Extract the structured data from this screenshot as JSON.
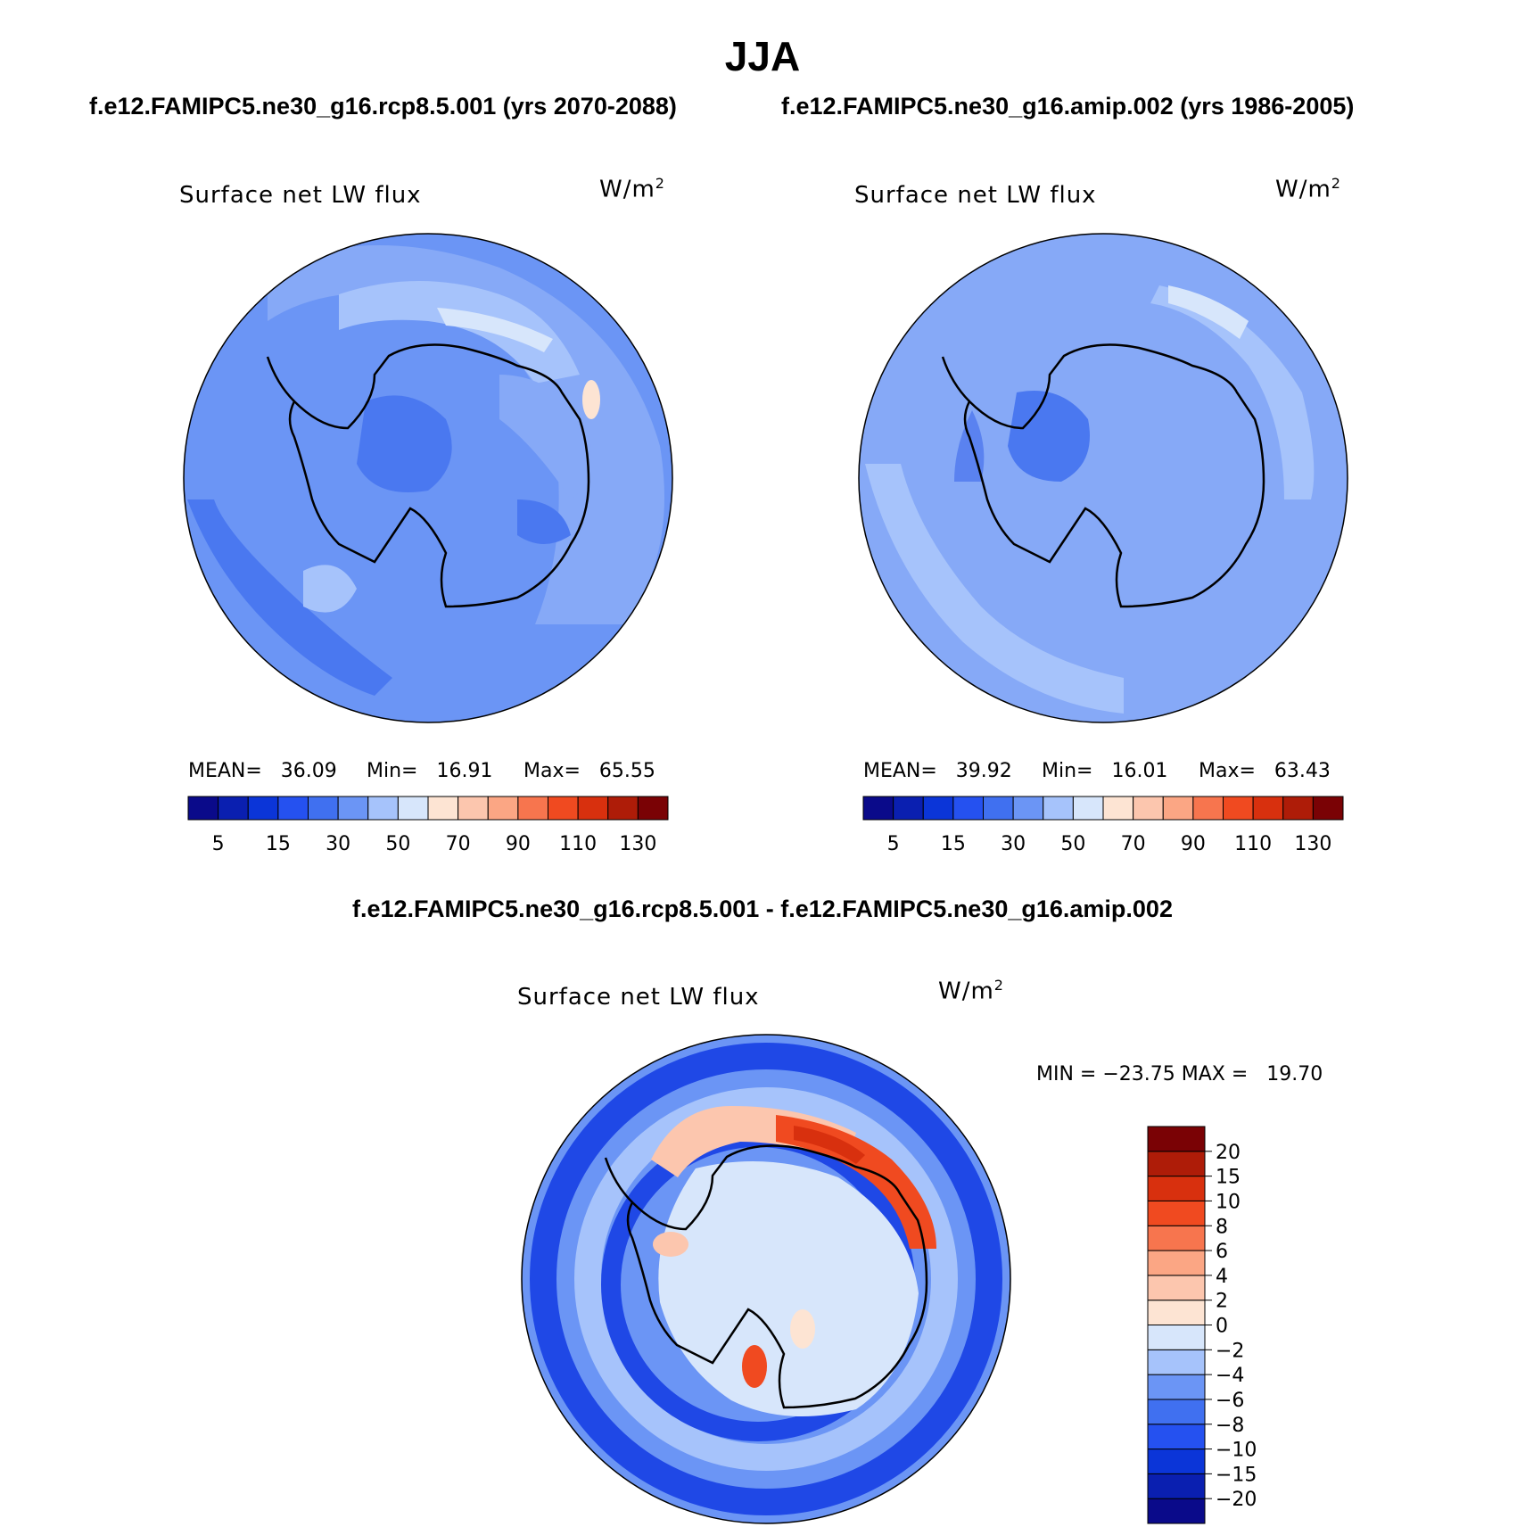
{
  "season": "JJA",
  "case_a_title": "f.e12.FAMIPC5.ne30_g16.rcp8.5.001 (yrs 2070-2088)",
  "case_b_title": "f.e12.FAMIPC5.ne30_g16.amip.002 (yrs 1986-2005)",
  "diff_title": "f.e12.FAMIPC5.ne30_g16.rcp8.5.001 - f.e12.FAMIPC5.ne30_g16.amip.002",
  "variable": "Surface net LW flux",
  "units_base": "W/m",
  "units_exp": "2",
  "panel_a": {
    "mean": "MEAN=   36.09",
    "min": "Min=   16.91",
    "max": "Max=   65.55"
  },
  "panel_b": {
    "mean": "MEAN=   39.92",
    "min": "Min=   16.01",
    "max": "Max=   63.43"
  },
  "panel_diff": {
    "minmax": "MIN = −23.75 MAX =   19.70"
  },
  "abs_colorbar": {
    "colors": [
      "#0a0a8a",
      "#0a1fb0",
      "#0b35d8",
      "#2551f0",
      "#4070f0",
      "#6b95f5",
      "#a6c3fb",
      "#d7e6fb",
      "#fde4d3",
      "#fcc6ae",
      "#fba684",
      "#f7754e",
      "#f04a20",
      "#d8300e",
      "#ae1c08",
      "#7a0205"
    ],
    "tick_labels": [
      "5",
      "15",
      "30",
      "50",
      "70",
      "90",
      "110",
      "130"
    ]
  },
  "diff_colorbar": {
    "colors": [
      "#0a0a8a",
      "#0a1fb0",
      "#0b35d8",
      "#2551f0",
      "#4070f0",
      "#6b95f5",
      "#a6c3fb",
      "#d7e6fb",
      "#fde4d3",
      "#fcc6ae",
      "#fba684",
      "#f7754e",
      "#f04a20",
      "#d8300e",
      "#ae1c08",
      "#7a0205"
    ],
    "tick_labels": [
      "−20",
      "−15",
      "−10",
      "−8",
      "−6",
      "−4",
      "−2",
      "0",
      "2",
      "4",
      "6",
      "8",
      "10",
      "15",
      "20"
    ]
  }
}
